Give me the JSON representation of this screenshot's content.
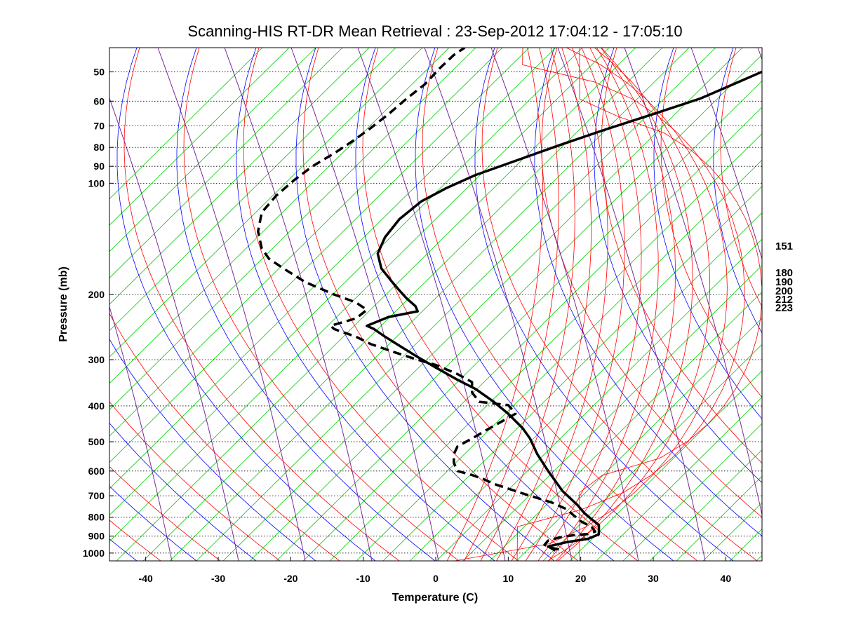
{
  "chart_data": {
    "type": "line",
    "title": "Scanning-HIS RT-DR Mean Retrieval : 23-Sep-2012 17:04:12 - 17:05:10",
    "xlabel": "Temperature (C)",
    "ylabel": "Pressure (mb)",
    "xlim": [
      -45,
      45
    ],
    "ylim": [
      1050,
      43
    ],
    "y_scale": "log",
    "x_ticks": [
      -40,
      -30,
      -20,
      -10,
      0,
      10,
      20,
      30,
      40
    ],
    "x_tick_labels": [
      "-40",
      "-30",
      "-20",
      "-10",
      "0",
      "10",
      "20",
      "30",
      "40"
    ],
    "y_ticks": [
      50,
      60,
      70,
      80,
      90,
      100,
      200,
      300,
      400,
      500,
      600,
      700,
      800,
      900,
      1000
    ],
    "y_tick_labels": [
      "50",
      "60",
      "70",
      "80",
      "90",
      "100",
      "200",
      "300",
      "400",
      "500",
      "600",
      "700",
      "800",
      "900",
      "1000"
    ],
    "grid": "horizontal dotted at pressure ticks",
    "right_labels": [
      "151",
      "180",
      "190",
      "200",
      "212",
      "223"
    ],
    "background_colors": {
      "dry_adiabats": "#7a2a9a",
      "moist_adiabats": "#0000ff",
      "mixing_ratio": "#00cc00",
      "theta_e_arcs": "#ff0000"
    },
    "series": [
      {
        "style": "solid",
        "color": "#000000",
        "points": [
          [
            16.5,
            985
          ],
          [
            15.5,
            960
          ],
          [
            18,
            935
          ],
          [
            21,
            915
          ],
          [
            22.5,
            890
          ],
          [
            22.5,
            840
          ],
          [
            21.5,
            810
          ],
          [
            20.5,
            780
          ],
          [
            19.5,
            740
          ],
          [
            17.5,
            680
          ],
          [
            15.5,
            600
          ],
          [
            14,
            540
          ],
          [
            13,
            490
          ],
          [
            12,
            460
          ],
          [
            10,
            420
          ],
          [
            8,
            390
          ],
          [
            5.5,
            360
          ],
          [
            3,
            340
          ],
          [
            0,
            315
          ],
          [
            -2.5,
            295
          ],
          [
            -5,
            275
          ],
          [
            -7,
            260
          ],
          [
            -8,
            252
          ],
          [
            -8.5,
            248
          ],
          [
            -9.5,
            243
          ],
          [
            -6.5,
            230
          ],
          [
            -2.5,
            222
          ],
          [
            -2.8,
            215
          ],
          [
            -4,
            205
          ],
          [
            -5,
            195
          ],
          [
            -6,
            185
          ],
          [
            -7.5,
            170
          ],
          [
            -8,
            155
          ],
          [
            -7,
            140
          ],
          [
            -5,
            125
          ],
          [
            -2,
            112
          ],
          [
            1.5,
            103
          ],
          [
            5.5,
            95
          ],
          [
            11,
            87
          ],
          [
            17,
            79
          ],
          [
            23,
            72
          ],
          [
            30,
            65
          ],
          [
            36.5,
            59
          ],
          [
            42,
            53
          ],
          [
            46,
            49
          ]
        ]
      },
      {
        "style": "dashed",
        "color": "#000000",
        "points": [
          [
            17,
            978
          ],
          [
            16,
            968
          ],
          [
            15,
            950
          ],
          [
            15.5,
            925
          ],
          [
            17,
            908
          ],
          [
            19,
            895
          ],
          [
            21,
            888
          ],
          [
            22,
            875
          ],
          [
            21.5,
            850
          ],
          [
            20,
            820
          ],
          [
            19,
            790
          ],
          [
            18,
            760
          ],
          [
            16,
            730
          ],
          [
            12,
            690
          ],
          [
            8,
            650
          ],
          [
            6.5,
            630
          ],
          [
            5,
            615
          ],
          [
            3,
            600
          ],
          [
            2.5,
            570
          ],
          [
            2.5,
            540
          ],
          [
            3,
            515
          ],
          [
            5,
            490
          ],
          [
            7,
            465
          ],
          [
            11,
            420
          ],
          [
            10,
            398
          ],
          [
            6,
            390
          ],
          [
            5,
            368
          ],
          [
            5,
            345
          ],
          [
            3,
            328
          ],
          [
            0,
            310
          ],
          [
            -3,
            298
          ],
          [
            -6,
            285
          ],
          [
            -9,
            272
          ],
          [
            -11,
            260
          ],
          [
            -14,
            248
          ],
          [
            -14.5,
            243
          ],
          [
            -11,
            232
          ],
          [
            -9.5,
            220
          ],
          [
            -11,
            210
          ],
          [
            -14,
            200
          ],
          [
            -18,
            185
          ],
          [
            -21,
            170
          ],
          [
            -23,
            160
          ],
          [
            -24,
            150
          ],
          [
            -24.5,
            135
          ],
          [
            -24,
            120
          ],
          [
            -22,
            108
          ],
          [
            -19.5,
            98
          ],
          [
            -17,
            90
          ],
          [
            -14,
            83
          ],
          [
            -11.5,
            77
          ],
          [
            -9,
            71
          ],
          [
            -6.5,
            65
          ],
          [
            -4,
            59
          ],
          [
            -1.5,
            54
          ],
          [
            0.5,
            49
          ],
          [
            2.5,
            45
          ],
          [
            4,
            43
          ]
        ]
      }
    ]
  }
}
